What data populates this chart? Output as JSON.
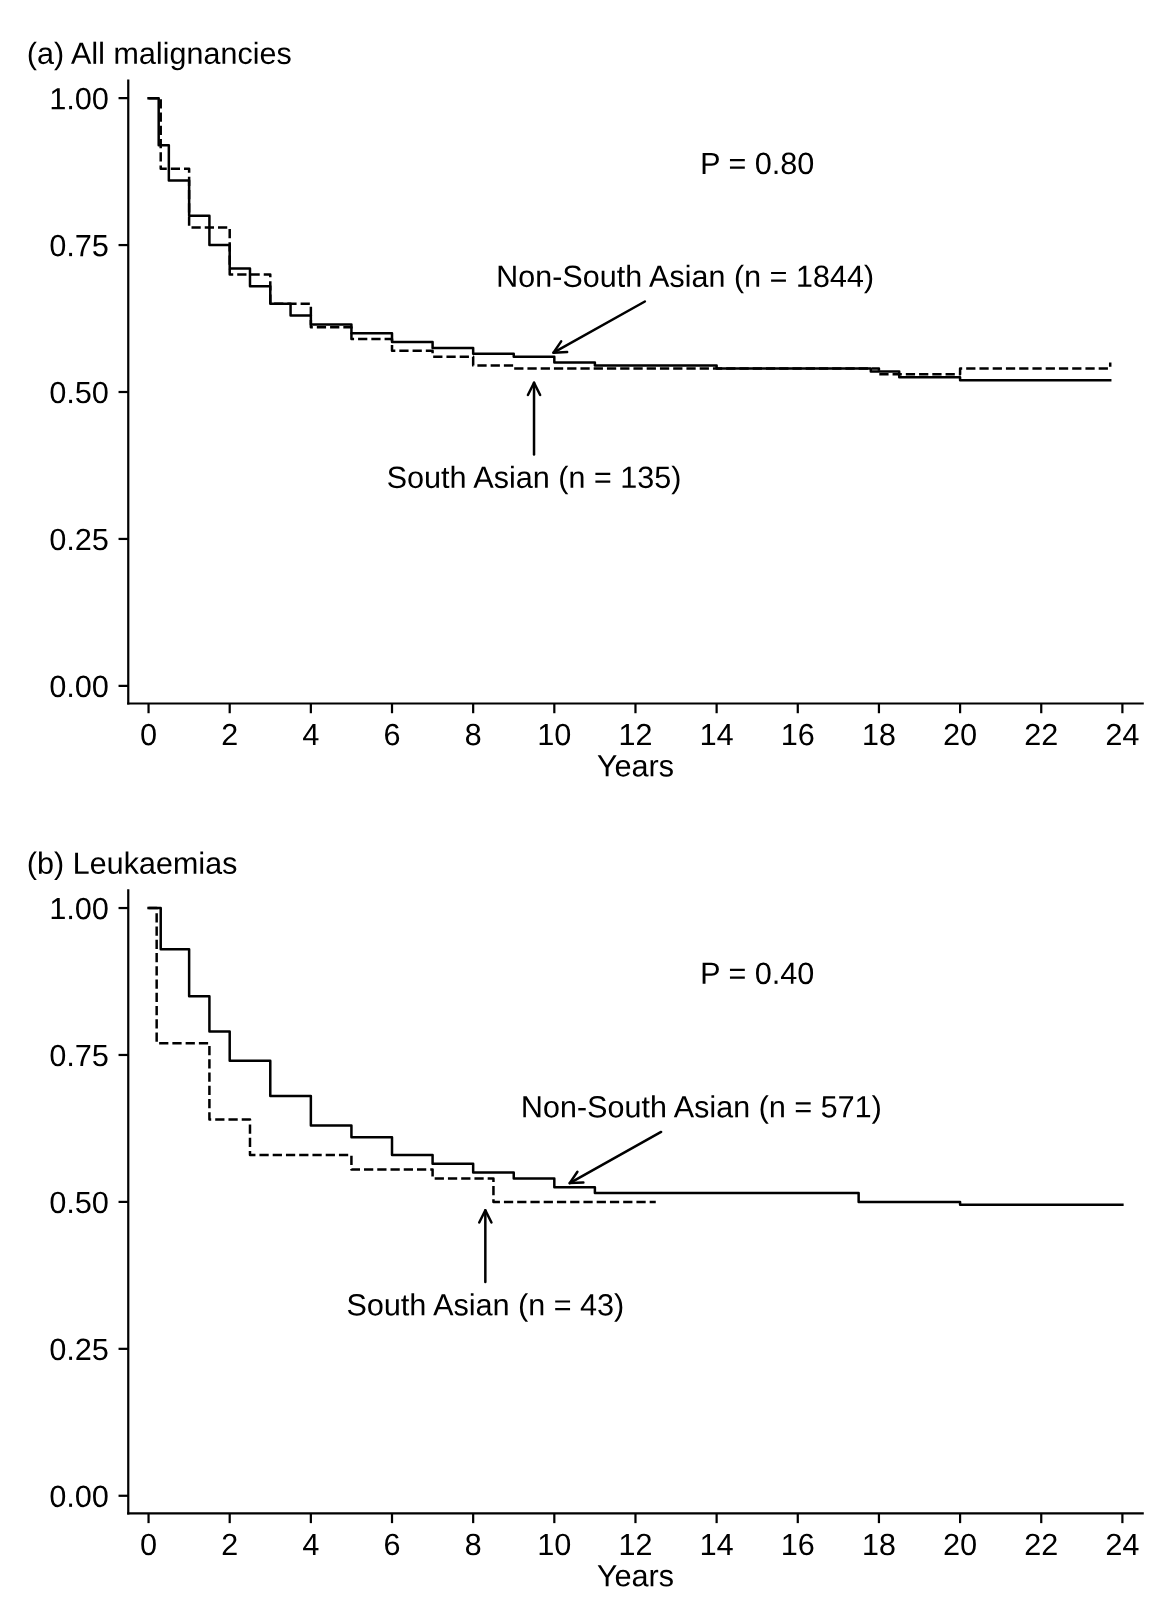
{
  "chart_data": [
    {
      "type": "step",
      "title": "(a) All malignancies",
      "xlabel": "Years",
      "xlim": [
        -0.5,
        24.5
      ],
      "ylim": [
        -0.03,
        1.03
      ],
      "xticks": [
        0,
        2,
        4,
        6,
        8,
        10,
        12,
        14,
        16,
        18,
        20,
        22,
        24
      ],
      "yticks": [
        {
          "value": 0,
          "label": "0.00"
        },
        {
          "value": 0.25,
          "label": "0.25"
        },
        {
          "value": 0.5,
          "label": "0.50"
        },
        {
          "value": 0.75,
          "label": "0.75"
        },
        {
          "value": 1,
          "label": "1.00"
        }
      ],
      "grid": false,
      "legend": false,
      "series": [
        {
          "color": "#000000",
          "line_style": "solid",
          "x": [
            0,
            0.25,
            0.5,
            1,
            1.5,
            2,
            2.5,
            3,
            3.5,
            4,
            5,
            6,
            7,
            8,
            9,
            10,
            11,
            12,
            14,
            16,
            17.8,
            18.5,
            20,
            21,
            22,
            23.7
          ],
          "values": [
            1.0,
            0.92,
            0.86,
            0.8,
            0.75,
            0.71,
            0.68,
            0.65,
            0.63,
            0.615,
            0.6,
            0.585,
            0.575,
            0.565,
            0.56,
            0.55,
            0.545,
            0.545,
            0.54,
            0.54,
            0.535,
            0.525,
            0.52,
            0.52,
            0.52,
            0.52
          ]
        },
        {
          "color": "#000000",
          "line_style": "dashed",
          "x": [
            0,
            0.3,
            1,
            2,
            3,
            4,
            5,
            6,
            7,
            8,
            9,
            10,
            12,
            17,
            18,
            19,
            20,
            22,
            23.7
          ],
          "values": [
            1.0,
            0.88,
            0.78,
            0.7,
            0.65,
            0.61,
            0.59,
            0.57,
            0.56,
            0.545,
            0.54,
            0.54,
            0.54,
            0.54,
            0.53,
            0.53,
            0.54,
            0.54,
            0.55
          ]
        }
      ],
      "annotations": [
        "P = 0.80",
        {
          "text": "Non-South Asian (n = 1844)",
          "x": 9.8,
          "y": 0.56
        },
        {
          "text": "South Asian (n = 135)",
          "x": 9.5,
          "y": 0.53
        }
      ]
    },
    {
      "type": "step",
      "title": "(b) Leukaemias",
      "xlabel": "Years",
      "xlim": [
        -0.5,
        24.5
      ],
      "ylim": [
        -0.03,
        1.03
      ],
      "xticks": [
        0,
        2,
        4,
        6,
        8,
        10,
        12,
        14,
        16,
        18,
        20,
        22,
        24
      ],
      "yticks": [
        {
          "value": 0,
          "label": "0.00"
        },
        {
          "value": 0.25,
          "label": "0.25"
        },
        {
          "value": 0.5,
          "label": "0.50"
        },
        {
          "value": 0.75,
          "label": "0.75"
        },
        {
          "value": 1,
          "label": "1.00"
        }
      ],
      "grid": false,
      "legend": false,
      "series": [
        {
          "color": "#000000",
          "line_style": "solid",
          "x": [
            0,
            0.3,
            1,
            1.5,
            2,
            3,
            4,
            5,
            6,
            7,
            8,
            9,
            10,
            11,
            12,
            16,
            17.5,
            20,
            24
          ],
          "values": [
            1.0,
            0.93,
            0.85,
            0.79,
            0.74,
            0.68,
            0.63,
            0.61,
            0.58,
            0.565,
            0.55,
            0.54,
            0.525,
            0.515,
            0.515,
            0.515,
            0.5,
            0.495,
            0.495
          ]
        },
        {
          "color": "#000000",
          "line_style": "dashed",
          "x": [
            0,
            0.2,
            1,
            1.5,
            2.5,
            5,
            7,
            8.5,
            10.5,
            12.5
          ],
          "values": [
            1.0,
            0.77,
            0.77,
            0.64,
            0.58,
            0.555,
            0.54,
            0.5,
            0.5,
            0.5
          ]
        }
      ],
      "annotations": [
        "P = 0.40",
        {
          "text": "Non-South Asian (n = 571)",
          "x": 10.2,
          "y": 0.525
        },
        {
          "text": "South Asian (n = 43)",
          "x": 8.3,
          "y": 0.5
        }
      ]
    }
  ]
}
